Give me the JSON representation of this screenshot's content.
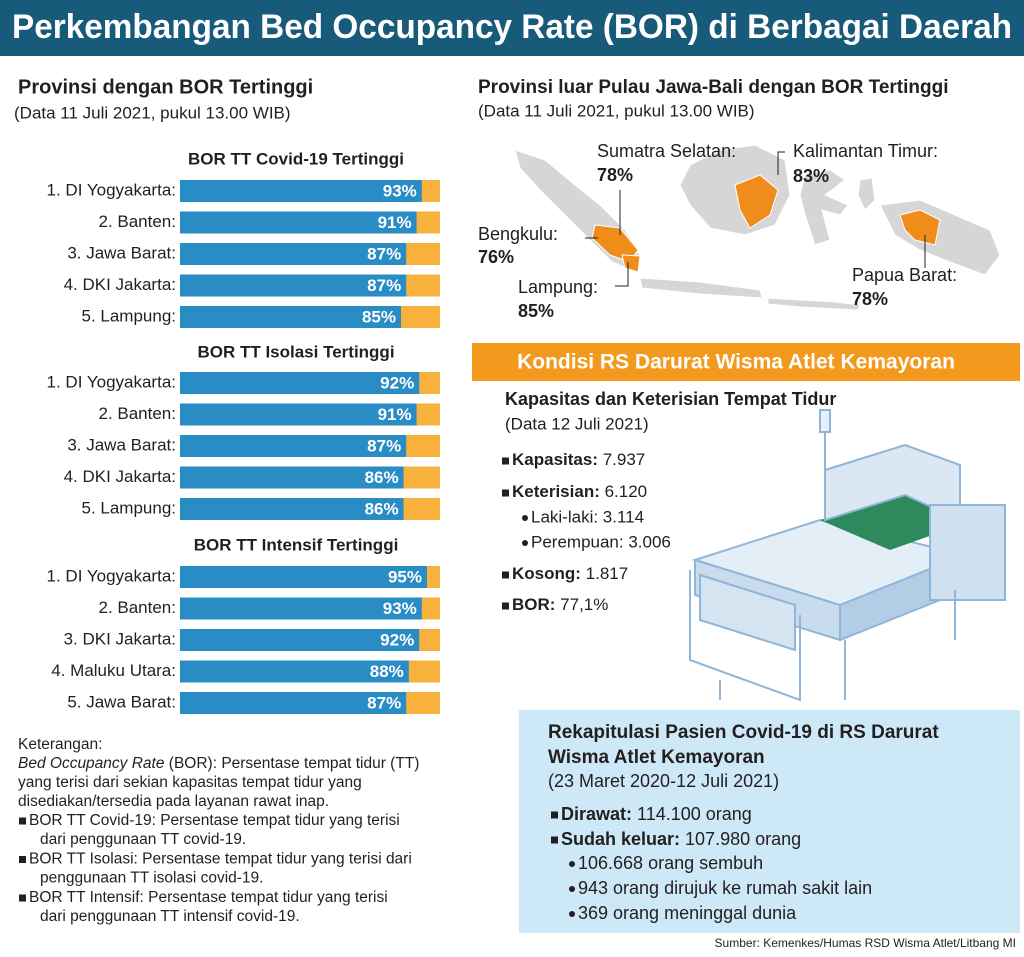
{
  "header": {
    "title": "Perkembangan Bed Occupancy Rate (BOR) di Berbagai Daerah"
  },
  "left": {
    "title": "Provinsi dengan BOR Tertinggi",
    "subtitle": "(Data 11 Juli 2021, pukul 13.00 WIB)"
  },
  "chart_data": [
    {
      "type": "bar",
      "title": "BOR TT Covid-19 Tertinggi",
      "categories": [
        "1. DI Yogyakarta:",
        "2. Banten:",
        "3. Jawa Barat:",
        "4. DKI Jakarta:",
        "5. Lampung:"
      ],
      "values": [
        93,
        91,
        87,
        87,
        85
      ],
      "value_labels": [
        "93%",
        "91%",
        "87%",
        "87%",
        "85%"
      ],
      "xlim": [
        0,
        100
      ],
      "color": "#2a8cc4",
      "track_color": "#f7b13c"
    },
    {
      "type": "bar",
      "title": "BOR TT Isolasi Tertinggi",
      "categories": [
        "1. DI Yogyakarta:",
        "2. Banten:",
        "3. Jawa Barat:",
        "4. DKI Jakarta:",
        "5. Lampung:"
      ],
      "values": [
        92,
        91,
        87,
        86,
        86
      ],
      "value_labels": [
        "92%",
        "91%",
        "87%",
        "86%",
        "86%"
      ],
      "xlim": [
        0,
        100
      ],
      "color": "#2a8cc4",
      "track_color": "#f7b13c"
    },
    {
      "type": "bar",
      "title": "BOR TT Intensif Tertinggi",
      "categories": [
        "1. DI Yogyakarta:",
        "2. Banten:",
        "3. DKI Jakarta:",
        "4. Maluku Utara:",
        "5. Jawa Barat:"
      ],
      "values": [
        95,
        93,
        92,
        88,
        87
      ],
      "value_labels": [
        "95%",
        "93%",
        "92%",
        "88%",
        "87%"
      ],
      "xlim": [
        0,
        100
      ],
      "color": "#2a8cc4",
      "track_color": "#f7b13c"
    }
  ],
  "keterangan": {
    "heading": "Keterangan:",
    "term": "Bed Occupancy Rate",
    "lines": [
      " (BOR): Persentase tempat tidur (TT)",
      "yang terisi dari sekian kapasitas tempat tidur yang",
      "disediakan/tersedia pada layanan rawat inap."
    ],
    "items": [
      [
        "BOR TT Covid-19: Persentase tempat tidur yang terisi",
        "dari penggunaan TT covid-19."
      ],
      [
        "BOR TT Isolasi: Persentase tempat tidur yang terisi dari",
        "penggunaan TT isolasi covid-19."
      ],
      [
        "BOR TT Intensif: Persentase tempat tidur yang terisi",
        "dari penggunaan TT intensif covid-19."
      ]
    ]
  },
  "map": {
    "title": "Provinsi luar Pulau Jawa-Bali dengan BOR Tertinggi",
    "subtitle": "(Data 11 Juli 2021, pukul 13.00 WIB)",
    "labels": [
      {
        "name": "Sumatra Selatan:",
        "value": "78%"
      },
      {
        "name": "Kalimantan Timur:",
        "value": "83%"
      },
      {
        "name": "Bengkulu:",
        "value": "76%"
      },
      {
        "name": "Lampung:",
        "value": "85%"
      },
      {
        "name": "Papua Barat:",
        "value": "78%"
      }
    ]
  },
  "wisma": {
    "banner": "Kondisi RS Darurat Wisma Atlet Kemayoran",
    "title": "Kapasitas dan Keterisian Tempat Tidur",
    "subtitle": "(Data 12 Juli 2021)",
    "items": [
      {
        "label": "Kapasitas:",
        "value": " 7.937"
      },
      {
        "label": "Keterisian:",
        "value": " 6.120"
      },
      {
        "label": "Kosong:",
        "value": " 1.817"
      },
      {
        "label": "BOR:",
        "value": " 77,1%"
      }
    ],
    "subitems": [
      "Laki-laki: 3.114",
      "Perempuan: 3.006"
    ]
  },
  "rekap": {
    "title_lines": [
      "Rekapitulasi Pasien Covid-19 di RS Darurat",
      "Wisma Atlet Kemayoran"
    ],
    "subtitle": "(23 Maret 2020-12 Juli 2021)",
    "items": [
      {
        "label": "Dirawat:",
        "value": " 114.100 orang"
      },
      {
        "label": "Sudah keluar:",
        "value": " 107.980 orang"
      }
    ],
    "subitems": [
      "106.668 orang sembuh",
      "943 orang dirujuk ke rumah sakit lain",
      "369 orang meninggal dunia"
    ]
  },
  "source": "Sumber: Kemenkes/Humas RSD Wisma Atlet/Litbang MI"
}
